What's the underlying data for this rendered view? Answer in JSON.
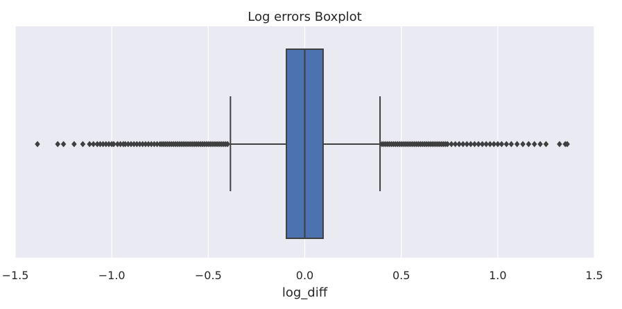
{
  "chart_data": {
    "type": "boxplot",
    "title": "Log errors Boxplot",
    "xlabel": "log_diff",
    "ylabel": "",
    "xlim": [
      -1.5,
      1.5
    ],
    "x_ticks": [
      -1.5,
      -1.0,
      -0.5,
      0.0,
      0.5,
      1.0,
      1.5
    ],
    "x_tick_labels": [
      "−1.5",
      "−1.0",
      "−0.5",
      "0.0",
      "0.5",
      "1.0",
      "1.5"
    ],
    "grid": true,
    "orientation": "horizontal",
    "box": {
      "q1": -0.095,
      "median": 0.0,
      "q3": 0.095,
      "whisker_low": -0.385,
      "whisker_high": 0.39
    },
    "outliers": [
      -1.385,
      -1.28,
      -1.25,
      -1.195,
      -1.15,
      -1.115,
      -1.095,
      -1.075,
      -1.06,
      -1.045,
      -1.03,
      -1.015,
      -1.0,
      -0.99,
      -0.97,
      -0.955,
      -0.94,
      -0.93,
      -0.915,
      -0.9,
      -0.885,
      -0.87,
      -0.855,
      -0.84,
      -0.825,
      -0.81,
      -0.795,
      -0.78,
      -0.765,
      -0.75,
      -0.74,
      -0.73,
      -0.72,
      -0.71,
      -0.7,
      -0.69,
      -0.68,
      -0.67,
      -0.66,
      -0.65,
      -0.64,
      -0.63,
      -0.62,
      -0.61,
      -0.6,
      -0.59,
      -0.58,
      -0.57,
      -0.56,
      -0.55,
      -0.54,
      -0.53,
      -0.52,
      -0.51,
      -0.5,
      -0.49,
      -0.48,
      -0.47,
      -0.46,
      -0.45,
      -0.44,
      -0.43,
      -0.42,
      -0.41,
      -0.4,
      0.4,
      0.41,
      0.42,
      0.43,
      0.44,
      0.45,
      0.46,
      0.47,
      0.48,
      0.49,
      0.5,
      0.51,
      0.52,
      0.53,
      0.54,
      0.55,
      0.56,
      0.57,
      0.58,
      0.59,
      0.6,
      0.61,
      0.62,
      0.63,
      0.64,
      0.65,
      0.66,
      0.67,
      0.68,
      0.69,
      0.7,
      0.71,
      0.72,
      0.73,
      0.74,
      0.76,
      0.78,
      0.8,
      0.82,
      0.84,
      0.86,
      0.88,
      0.9,
      0.92,
      0.94,
      0.96,
      0.98,
      1.0,
      1.02,
      1.045,
      1.07,
      1.1,
      1.13,
      1.16,
      1.19,
      1.22,
      1.25,
      1.32,
      1.35,
      1.36
    ],
    "colors": {
      "background": "#eaeaf2",
      "grid": "#ffffff",
      "box_fill": "#4c72b0",
      "box_edge": "#3f3f3f",
      "text": "#262626"
    }
  }
}
